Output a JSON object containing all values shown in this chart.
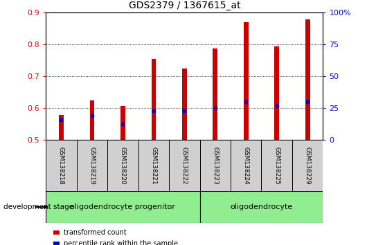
{
  "title": "GDS2379 / 1367615_at",
  "samples": [
    "GSM138218",
    "GSM138219",
    "GSM138220",
    "GSM138221",
    "GSM138222",
    "GSM138223",
    "GSM138224",
    "GSM138225",
    "GSM138229"
  ],
  "transformed_count": [
    0.578,
    0.623,
    0.605,
    0.754,
    0.724,
    0.786,
    0.868,
    0.793,
    0.877
  ],
  "percentile_rank": [
    0.563,
    0.575,
    0.55,
    0.59,
    0.59,
    0.6,
    0.618,
    0.605,
    0.618
  ],
  "ylim": [
    0.5,
    0.9
  ],
  "yticks_left": [
    0.5,
    0.6,
    0.7,
    0.8,
    0.9
  ],
  "yticks_right": [
    0,
    25,
    50,
    75,
    100
  ],
  "bar_color": "#cc0000",
  "percentile_color": "#0000cc",
  "bar_width": 0.15,
  "groups": [
    {
      "label": "oligodendrocyte progenitor",
      "start": 0,
      "end": 4,
      "color": "#90ee90"
    },
    {
      "label": "oligodendrocyte",
      "start": 5,
      "end": 8,
      "color": "#90ee90"
    }
  ],
  "dev_stage_label": "development stage",
  "legend_items": [
    {
      "label": "transformed count",
      "color": "#cc0000"
    },
    {
      "label": "percentile rank within the sample",
      "color": "#0000cc"
    }
  ],
  "plot_bg_color": "#ffffff",
  "title_fontsize": 10,
  "tick_fontsize": 8,
  "label_fontsize": 8
}
